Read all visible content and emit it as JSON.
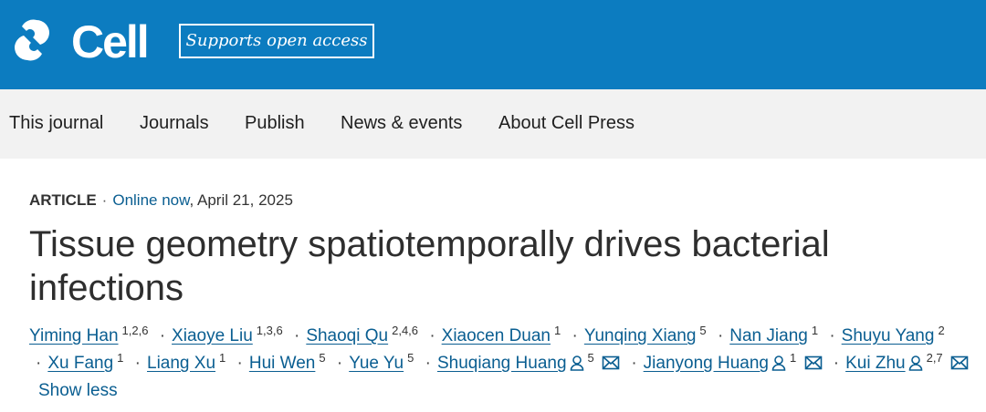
{
  "header": {
    "logo": "Cell",
    "badge": "Supports open access"
  },
  "nav": [
    "This journal",
    "Journals",
    "Publish",
    "News & events",
    "About Cell Press"
  ],
  "article": {
    "type": "ARTICLE",
    "status": "Online now",
    "date": "April 21, 2025",
    "title": "Tissue geometry spatiotemporally drives bacterial infections",
    "authors": [
      {
        "name": "Yiming Han",
        "affiliations": "1,2,6"
      },
      {
        "name": "Xiaoye Liu",
        "affiliations": "1,3,6"
      },
      {
        "name": "Shaoqi Qu",
        "affiliations": "2,4,6"
      },
      {
        "name": "Xiaocen Duan",
        "affiliations": "1"
      },
      {
        "name": "Yunqing Xiang",
        "affiliations": "5"
      },
      {
        "name": "Nan Jiang",
        "affiliations": "1"
      },
      {
        "name": "Shuyu Yang",
        "affiliations": "2"
      },
      {
        "name": "Xu Fang",
        "affiliations": "1"
      },
      {
        "name": "Liang Xu",
        "affiliations": "1"
      },
      {
        "name": "Hui Wen",
        "affiliations": "5"
      },
      {
        "name": "Yue Yu",
        "affiliations": "5"
      },
      {
        "name": "Shuqiang Huang",
        "affiliations": "5"
      },
      {
        "name": "Jianyong Huang",
        "affiliations": "1"
      },
      {
        "name": "Kui Zhu",
        "affiliations": "2,7"
      }
    ],
    "toggle": "Show less"
  }
}
